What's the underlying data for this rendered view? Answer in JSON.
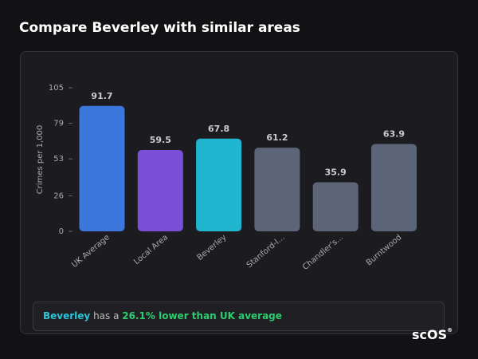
{
  "header": {
    "title": "Compare Beverley with similar areas"
  },
  "chart_data": {
    "type": "bar",
    "y_label": "Crimes per 1,000",
    "categories": [
      "UK Average",
      "Local Area",
      "Beverley",
      "Stanford-l...",
      "Chandler's...",
      "Burntwood"
    ],
    "values": [
      91.7,
      59.5,
      67.8,
      61.2,
      35.9,
      63.9
    ],
    "colors": [
      "#3a76dc",
      "#7a4ed6",
      "#20b6cf",
      "#5b6577",
      "#5b6577",
      "#5b6577"
    ],
    "ylim": [
      0,
      105
    ],
    "yticks": [
      0,
      26,
      53,
      79,
      105
    ],
    "grid": false
  },
  "summary": {
    "area": "Beverley",
    "text": "has a",
    "highlight": "26.1% lower than UK average"
  },
  "logo": {
    "text": "scOS",
    "mark": "®"
  }
}
